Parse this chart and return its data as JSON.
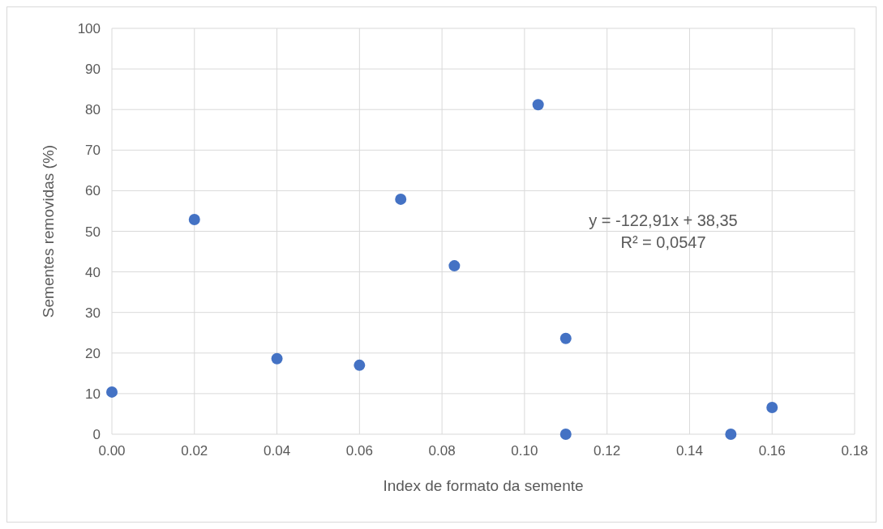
{
  "chart_data": {
    "type": "scatter",
    "xlabel": "Index de formato da semente",
    "ylabel": "Sementes removidas (%)",
    "series": [
      {
        "color": "#4472c4",
        "x": [
          0,
          0.02,
          0.04,
          0.06,
          0.07,
          0.083,
          0.1033,
          0.11,
          0.11,
          0.15,
          0.16
        ],
        "values": [
          10.4,
          52.9,
          18.6,
          17.0,
          57.9,
          41.5,
          81.2,
          23.6,
          0,
          0,
          6.6
        ]
      }
    ],
    "xlim": [
      0,
      0.18
    ],
    "xticks": [
      {
        "value": 0,
        "label": "0.00"
      },
      {
        "value": 0.02,
        "label": "0.02"
      },
      {
        "value": 0.04,
        "label": "0.04"
      },
      {
        "value": 0.06,
        "label": "0.06"
      },
      {
        "value": 0.08,
        "label": "0.08"
      },
      {
        "value": 0.1,
        "label": "0.10"
      },
      {
        "value": 0.12,
        "label": "0.12"
      },
      {
        "value": 0.14,
        "label": "0.14"
      },
      {
        "value": 0.16,
        "label": "0.16"
      },
      {
        "value": 0.18,
        "label": "0.18"
      }
    ],
    "ylim": [
      0,
      100
    ],
    "yticks": [
      0,
      10,
      20,
      30,
      40,
      50,
      60,
      70,
      80,
      90,
      100
    ],
    "grid": true,
    "marker": "circle",
    "annotations": [
      "y = -122,91x + 38,35",
      "R² = 0,0547"
    ]
  }
}
